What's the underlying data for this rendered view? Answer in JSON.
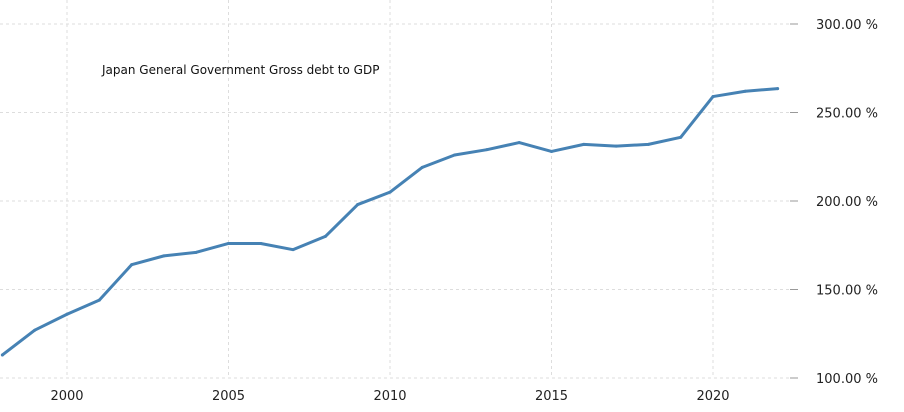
{
  "chart_data": {
    "type": "line",
    "title": "Japan General Government Gross debt to GDP",
    "xlabel": "",
    "ylabel": "",
    "x": [
      1998,
      1999,
      2000,
      2001,
      2002,
      2003,
      2004,
      2005,
      2006,
      2007,
      2008,
      2009,
      2010,
      2011,
      2012,
      2013,
      2014,
      2015,
      2016,
      2017,
      2018,
      2019,
      2020,
      2021,
      2022
    ],
    "series": [
      {
        "name": "Japan General Government Gross debt to GDP",
        "color": "#4682b4",
        "values": [
          113,
          127,
          136,
          144,
          164,
          169,
          171,
          176,
          176,
          172.5,
          180,
          198,
          205,
          219,
          226,
          229,
          233,
          228,
          232,
          231,
          232,
          236,
          259,
          262,
          263.5
        ]
      }
    ],
    "xlim": [
      1998,
      2024.3
    ],
    "ylim": [
      100,
      300
    ],
    "xticks": [
      "2000",
      "2005",
      "2010",
      "2015",
      "2020"
    ],
    "xtick_values": [
      2000,
      2005,
      2010,
      2015,
      2020
    ],
    "yticks": [
      "100.00 %",
      "150.00 %",
      "200.00 %",
      "250.00 %",
      "300.00 %"
    ],
    "ytick_values": [
      100,
      150,
      200,
      250,
      300
    ],
    "grid": true,
    "legend": "none",
    "y_axis_position": "right"
  }
}
